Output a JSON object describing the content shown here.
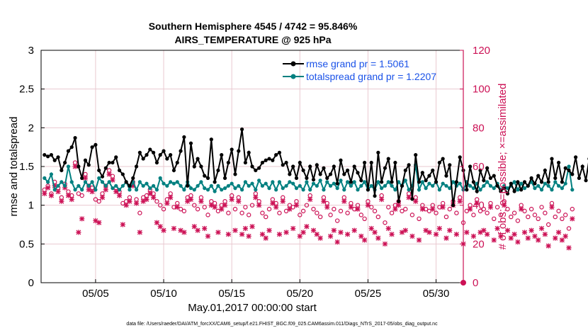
{
  "chart_data": {
    "type": "line",
    "title": [
      "Southern Hemisphere 4545 / 4742 = 95.846%",
      "AIRS_TEMPERATURE @ 925 hPa"
    ],
    "xlabel": "May.01,2017 00:00:00 start",
    "ylabel_left": "rmse and totalspread",
    "ylabel_right": "# of obs: o=possible; ×=assimilated",
    "x_ticks": [
      {
        "day": 5,
        "label": "05/05"
      },
      {
        "day": 10,
        "label": "05/10"
      },
      {
        "day": 15,
        "label": "05/15"
      },
      {
        "day": 20,
        "label": "05/20"
      },
      {
        "day": 25,
        "label": "05/25"
      },
      {
        "day": 30,
        "label": "05/30"
      }
    ],
    "xlim": [
      1,
      32
    ],
    "ylim_left": [
      0,
      3
    ],
    "y_ticks_left": [
      "0",
      "0.5",
      "1",
      "1.5",
      "2",
      "2.5",
      "3"
    ],
    "ylim_right": [
      0,
      120
    ],
    "y_ticks_right": [
      "0",
      "20",
      "40",
      "60",
      "80",
      "100",
      "120"
    ],
    "series": [
      {
        "name": "rmse grand pr = 1.5061",
        "color": "#000000",
        "x_start": 1.25,
        "x_step": 0.25,
        "values": [
          1.65,
          1.63,
          1.65,
          1.58,
          1.62,
          1.45,
          1.55,
          1.7,
          1.75,
          1.87,
          1.5,
          1.35,
          1.58,
          1.52,
          1.75,
          1.78,
          1.45,
          1.37,
          1.48,
          1.55,
          1.55,
          1.62,
          1.45,
          1.4,
          1.3,
          1.25,
          1.35,
          1.5,
          1.68,
          1.6,
          1.65,
          1.72,
          1.68,
          1.55,
          1.65,
          1.7,
          1.6,
          1.65,
          1.45,
          1.55,
          1.7,
          1.88,
          1.25,
          1.8,
          1.5,
          1.6,
          1.5,
          1.38,
          1.35,
          1.85,
          1.3,
          1.45,
          1.65,
          1.35,
          1.55,
          1.72,
          1.4,
          1.7,
          1.98,
          1.55,
          1.68,
          1.5,
          1.45,
          1.48,
          1.55,
          1.58,
          1.6,
          1.58,
          1.65,
          1.68,
          1.52,
          1.55,
          1.4,
          1.5,
          1.35,
          1.55,
          1.45,
          1.35,
          1.5,
          1.33,
          1.52,
          1.4,
          1.48,
          1.35,
          1.4,
          1.5,
          1.28,
          1.58,
          1.4,
          1.45,
          1.3,
          1.5,
          1.42,
          1.32,
          1.55,
          1.2,
          1.55,
          1.12,
          1.68,
          1.3,
          1.48,
          1.6,
          1.3,
          1.55,
          1.05,
          1.25,
          1.45,
          1.52,
          1.08,
          1.65,
          1.3,
          1.42,
          1.32,
          1.38,
          1.45,
          1.3,
          1.55,
          1.6,
          1.38,
          1.52,
          1.0,
          1.3,
          1.62,
          1.45,
          1.2,
          1.5,
          1.3,
          1.18,
          1.45,
          1.32,
          1.48,
          1.35,
          1.38,
          1.25,
          1.18,
          1.22,
          1.15,
          1.28,
          1.18,
          1.3,
          1.2,
          1.3,
          1.25,
          1.35,
          1.28,
          1.38,
          1.3,
          1.45,
          1.3,
          1.6,
          1.35,
          1.55,
          1.3,
          1.48,
          1.45,
          1.4,
          1.62,
          1.35,
          1.5,
          1.32,
          1.6,
          1.8
        ]
      },
      {
        "name": "totalspread grand pr = 1.2207",
        "color": "#008080",
        "x_start": 1.25,
        "x_step": 0.25,
        "values": [
          1.35,
          1.3,
          1.4,
          1.2,
          1.25,
          1.3,
          1.25,
          1.5,
          1.3,
          1.2,
          1.25,
          1.2,
          1.3,
          1.25,
          1.3,
          1.2,
          1.35,
          1.3,
          1.25,
          1.3,
          1.22,
          1.25,
          1.2,
          1.25,
          1.3,
          1.2,
          1.3,
          1.2,
          1.3,
          1.25,
          1.28,
          1.22,
          1.25,
          1.2,
          1.35,
          1.28,
          1.25,
          1.3,
          1.28,
          1.3,
          1.25,
          1.2,
          1.3,
          1.22,
          1.2,
          1.25,
          1.3,
          1.22,
          1.2,
          1.25,
          1.18,
          1.25,
          1.2,
          1.22,
          1.25,
          1.28,
          1.22,
          1.25,
          1.2,
          1.3,
          1.25,
          1.28,
          1.2,
          1.32,
          1.25,
          1.28,
          1.22,
          1.3,
          1.2,
          1.3,
          1.22,
          1.25,
          1.3,
          1.28,
          1.22,
          1.25,
          1.2,
          1.3,
          1.2,
          1.28,
          1.25,
          1.32,
          1.2,
          1.3,
          1.25,
          1.28,
          1.22,
          1.32,
          1.2,
          1.3,
          1.25,
          1.3,
          1.2,
          1.25,
          1.3,
          1.2,
          1.25,
          1.2,
          1.3,
          1.22,
          1.25,
          1.3,
          1.25,
          1.2,
          1.3,
          1.25,
          1.32,
          1.2,
          1.25,
          1.52,
          1.2,
          1.3,
          1.22,
          1.28,
          1.25,
          1.3,
          1.2,
          1.28,
          1.25,
          1.22,
          1.3,
          1.25,
          1.28,
          1.2,
          1.3,
          1.25,
          1.22,
          1.28,
          1.2,
          1.25,
          1.3,
          1.25,
          1.22,
          1.28,
          1.2,
          1.25,
          1.22,
          1.25,
          1.3,
          1.2,
          1.28,
          1.22,
          1.25,
          1.3,
          1.22,
          1.25,
          1.2,
          1.28,
          1.25,
          1.2,
          1.3,
          1.25,
          1.22,
          1.28,
          1.5,
          1.2
        ]
      },
      {
        "name": "obs possible",
        "marker": "o",
        "color": "#cc1155",
        "axis": "right",
        "x_start": 1.25,
        "x_step": 0.25,
        "values": [
          48,
          50,
          46,
          52,
          49,
          44,
          51,
          47,
          45,
          62,
          46,
          45,
          56,
          50,
          49,
          43,
          42,
          46,
          50,
          58,
          55,
          49,
          47,
          41,
          42,
          44,
          52,
          43,
          36,
          44,
          45,
          48,
          46,
          42,
          40,
          38,
          43,
          46,
          39,
          41,
          38,
          37,
          44,
          45,
          40,
          38,
          44,
          39,
          35,
          42,
          41,
          37,
          40,
          42,
          36,
          45,
          38,
          44,
          36,
          39,
          35,
          40,
          46,
          42,
          36,
          34,
          38,
          43,
          41,
          36,
          44,
          37,
          40,
          39,
          42,
          35,
          37,
          40,
          45,
          38,
          36,
          34,
          44,
          41,
          35,
          38,
          32,
          37,
          44,
          36,
          41,
          38,
          40,
          35,
          33,
          42,
          39,
          37,
          34,
          45,
          31,
          39,
          36,
          40,
          42,
          37,
          38,
          46,
          35,
          44,
          33,
          40,
          38,
          37,
          40,
          36,
          39,
          41,
          34,
          38,
          42,
          36,
          44,
          31,
          37,
          40,
          35,
          43,
          37,
          38,
          36,
          41,
          33,
          39,
          35,
          42,
          38,
          34,
          36,
          32,
          40,
          37,
          34,
          38,
          35,
          33,
          39,
          36,
          30,
          41,
          34,
          37,
          33,
          35,
          28,
          38
        ]
      },
      {
        "name": "obs assimilated",
        "marker": "x",
        "color": "#cc1155",
        "axis": "right",
        "x_start": 1.25,
        "x_step": 0.25,
        "values": [
          46,
          49,
          45,
          50,
          47,
          42,
          49,
          45,
          43,
          60,
          26,
          33,
          54,
          48,
          47,
          32,
          31,
          44,
          48,
          56,
          53,
          47,
          45,
          30,
          40,
          42,
          50,
          41,
          26,
          42,
          43,
          46,
          44,
          31,
          29,
          27,
          41,
          44,
          28,
          39,
          27,
          26,
          42,
          43,
          29,
          27,
          42,
          28,
          24,
          40,
          39,
          26,
          38,
          40,
          25,
          43,
          27,
          42,
          25,
          28,
          24,
          29,
          44,
          40,
          25,
          23,
          27,
          41,
          39,
          25,
          42,
          26,
          38,
          28,
          40,
          24,
          26,
          29,
          43,
          27,
          25,
          23,
          42,
          39,
          24,
          27,
          21,
          26,
          42,
          25,
          39,
          27,
          38,
          24,
          22,
          40,
          28,
          26,
          23,
          43,
          20,
          28,
          25,
          38,
          40,
          26,
          27,
          44,
          24,
          42,
          22,
          38,
          27,
          26,
          38,
          25,
          28,
          39,
          23,
          27,
          40,
          25,
          42,
          20,
          26,
          38,
          24,
          41,
          26,
          27,
          25,
          39,
          22,
          28,
          24,
          40,
          27,
          23,
          25,
          21,
          38,
          26,
          23,
          27,
          24,
          22,
          28,
          25,
          19,
          39,
          23,
          26,
          22,
          24,
          18,
          33
        ]
      }
    ],
    "footnote": "data file: /Users/raeder/DAI/ATM_forcXX/CAM6_setup/f.e21.FHIST_BGC.f09_025.CAM6assim.011/Diags_NTrS_2017-05/obs_diag_output.nc",
    "colors": {
      "rmse": "#000000",
      "spread": "#008080",
      "obs": "#cc1155",
      "grid": "#e9c9d0"
    },
    "legend_position": "top-right"
  }
}
